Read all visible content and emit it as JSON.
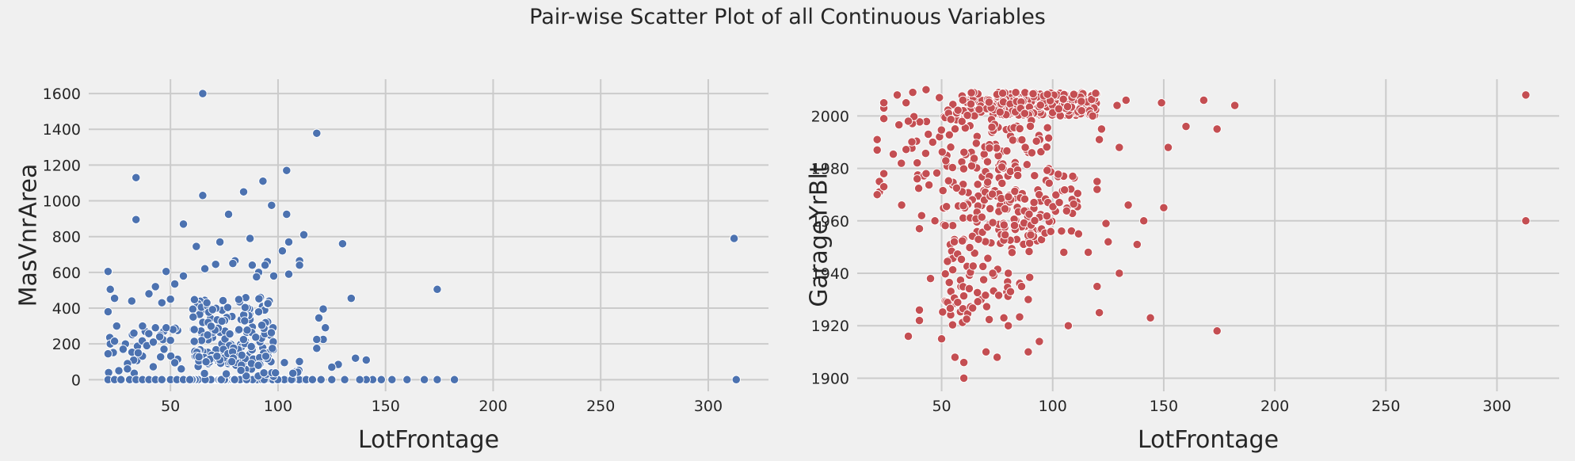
{
  "figure": {
    "title": "Pair-wise Scatter Plot of all Continuous Variables"
  },
  "chart_data": [
    {
      "type": "scatter",
      "title": "",
      "xlabel": "LotFrontage",
      "ylabel": "MasVnrArea",
      "xlim": [
        12,
        328
      ],
      "ylim": [
        -65,
        1680
      ],
      "xticks": [
        50,
        100,
        150,
        200,
        250,
        300
      ],
      "yticks": [
        0,
        200,
        400,
        600,
        800,
        1000,
        1200,
        1400,
        1600
      ],
      "grid": true,
      "color": "#4c72b0",
      "seed": 7,
      "points": [
        [
          65,
          1600
        ],
        [
          118,
          1378
        ],
        [
          34,
          1130
        ],
        [
          104,
          1170
        ],
        [
          93,
          1110
        ],
        [
          84,
          1050
        ],
        [
          65,
          1030
        ],
        [
          97,
          975
        ],
        [
          34,
          895
        ],
        [
          56,
          870
        ],
        [
          104,
          925
        ],
        [
          77,
          925
        ],
        [
          112,
          810
        ],
        [
          130,
          760
        ],
        [
          105,
          770
        ],
        [
          87,
          790
        ],
        [
          73,
          770
        ],
        [
          62,
          745
        ],
        [
          312,
          790
        ],
        [
          174,
          505
        ],
        [
          21,
          605
        ],
        [
          48,
          605
        ],
        [
          134,
          455
        ],
        [
          313,
          0
        ],
        [
          182,
          0
        ],
        [
          174,
          0
        ],
        [
          168,
          0
        ],
        [
          160,
          0
        ],
        [
          153,
          0
        ],
        [
          148,
          0
        ],
        [
          144,
          0
        ],
        [
          141,
          0
        ],
        [
          138,
          0
        ],
        [
          131,
          0
        ],
        [
          125,
          0
        ],
        [
          120,
          0
        ],
        [
          116,
          0
        ],
        [
          141,
          110
        ],
        [
          136,
          120
        ],
        [
          128,
          85
        ],
        [
          125,
          70
        ],
        [
          122,
          290
        ],
        [
          121,
          225
        ],
        [
          121,
          395
        ],
        [
          119,
          345
        ],
        [
          118,
          225
        ],
        [
          118,
          175
        ],
        [
          110,
          665
        ],
        [
          110,
          640
        ],
        [
          102,
          720
        ],
        [
          95,
          660
        ],
        [
          94,
          640
        ],
        [
          91,
          600
        ],
        [
          88,
          640
        ],
        [
          105,
          590
        ],
        [
          98,
          580
        ],
        [
          90,
          575
        ],
        [
          80,
          665
        ],
        [
          79,
          650
        ],
        [
          71,
          645
        ],
        [
          66,
          620
        ],
        [
          56,
          580
        ],
        [
          52,
          535
        ],
        [
          50,
          450
        ],
        [
          46,
          430
        ],
        [
          43,
          520
        ],
        [
          40,
          480
        ],
        [
          32,
          440
        ],
        [
          22,
          505
        ],
        [
          21,
          380
        ],
        [
          24,
          455
        ],
        [
          25,
          300
        ],
        [
          22,
          200
        ],
        [
          21,
          145
        ],
        [
          24,
          215
        ],
        [
          21,
          0
        ],
        [
          24,
          0
        ],
        [
          27,
          0
        ],
        [
          31,
          0
        ],
        [
          34,
          0
        ],
        [
          37,
          0
        ],
        [
          40,
          0
        ],
        [
          43,
          0
        ],
        [
          46,
          0
        ],
        [
          50,
          0
        ],
        [
          53,
          0
        ],
        [
          56,
          0
        ],
        [
          59,
          0
        ],
        [
          30,
          90
        ],
        [
          35,
          150
        ],
        [
          39,
          190
        ],
        [
          43,
          290
        ],
        [
          45,
          240
        ],
        [
          47,
          170
        ],
        [
          52,
          95
        ],
        [
          55,
          60
        ],
        [
          50,
          220
        ],
        [
          48,
          290
        ],
        [
          42,
          210
        ],
        [
          37,
          300
        ],
        [
          33,
          260
        ],
        [
          28,
          170
        ],
        [
          30,
          60
        ],
        [
          26,
          50
        ]
      ],
      "clusters": [
        {
          "n": 180,
          "x": [
            59,
            115
          ],
          "y": [
            0,
            0
          ]
        },
        {
          "n": 150,
          "x": [
            60,
            98
          ],
          "y": [
            80,
            460
          ]
        },
        {
          "n": 40,
          "x": [
            60,
            110
          ],
          "y": [
            15,
            160
          ]
        },
        {
          "n": 25,
          "x": [
            21,
            56
          ],
          "y": [
            30,
            300
          ]
        }
      ]
    },
    {
      "type": "scatter",
      "title": "",
      "xlabel": "LotFrontage",
      "ylabel": "GarageYrBlt",
      "xlim": [
        12,
        328
      ],
      "ylim": [
        1895,
        2014
      ],
      "xticks": [
        50,
        100,
        150,
        200,
        250,
        300
      ],
      "yticks": [
        1900,
        1920,
        1940,
        1960,
        1980,
        2000
      ],
      "grid": true,
      "color": "#c44e52",
      "seed": 11,
      "points": [
        [
          313,
          2008
        ],
        [
          313,
          1960
        ],
        [
          182,
          2004
        ],
        [
          168,
          2006
        ],
        [
          174,
          1995
        ],
        [
          160,
          1996
        ],
        [
          149,
          2005
        ],
        [
          152,
          1988
        ],
        [
          150,
          1965
        ],
        [
          134,
          1966
        ],
        [
          141,
          1960
        ],
        [
          138,
          1951
        ],
        [
          130,
          1940
        ],
        [
          144,
          1923
        ],
        [
          174,
          1918
        ],
        [
          120,
          1935
        ],
        [
          121,
          1925
        ],
        [
          107,
          1920
        ],
        [
          105,
          1948
        ],
        [
          116,
          1948
        ],
        [
          130,
          1988
        ],
        [
          129,
          2004
        ],
        [
          133,
          2006
        ],
        [
          94,
          1914
        ],
        [
          89,
          1910
        ],
        [
          75,
          1908
        ],
        [
          70,
          1910
        ],
        [
          60,
          1900
        ],
        [
          60,
          1906
        ],
        [
          56,
          1908
        ],
        [
          35,
          1916
        ],
        [
          40,
          1922
        ],
        [
          40,
          1926
        ],
        [
          45,
          1938
        ],
        [
          50,
          1915
        ],
        [
          41,
          1962
        ],
        [
          40,
          1957
        ],
        [
          39,
          1976
        ],
        [
          43,
          1978
        ],
        [
          44,
          1993
        ],
        [
          46,
          1990
        ],
        [
          32,
          1966
        ],
        [
          21,
          1987
        ],
        [
          21,
          1991
        ],
        [
          22,
          1975
        ],
        [
          22,
          1971
        ],
        [
          24,
          1973
        ],
        [
          24,
          1978
        ],
        [
          21,
          1970
        ],
        [
          24,
          1999
        ],
        [
          24,
          2003
        ],
        [
          24,
          2005
        ],
        [
          30,
          2008
        ],
        [
          34,
          2005
        ],
        [
          37,
          2009
        ],
        [
          43,
          2010
        ],
        [
          49,
          2007
        ],
        [
          81,
          1933
        ],
        [
          86,
          1935
        ],
        [
          89,
          1930
        ],
        [
          80,
          1920
        ],
        [
          78,
          1923
        ],
        [
          73,
          1940
        ],
        [
          80,
          1940
        ],
        [
          125,
          1952
        ],
        [
          124,
          1959
        ],
        [
          120,
          1972
        ],
        [
          120,
          1975
        ],
        [
          121,
          1991
        ],
        [
          122,
          1995
        ],
        [
          118,
          2000
        ],
        [
          113,
          2002
        ],
        [
          109,
          1977
        ],
        [
          103,
          1967
        ],
        [
          47,
          1960
        ],
        [
          35,
          1998
        ]
      ],
      "clusters": [
        {
          "n": 260,
          "x": [
            59,
            120
          ],
          "y": [
            2000,
            2009
          ]
        },
        {
          "n": 110,
          "x": [
            59,
            95
          ],
          "y": [
            1950,
            1972
          ]
        },
        {
          "n": 80,
          "x": [
            59,
            100
          ],
          "y": [
            1973,
            1999
          ]
        },
        {
          "n": 70,
          "x": [
            50,
            60
          ],
          "y": [
            1920,
            2008
          ]
        },
        {
          "n": 35,
          "x": [
            60,
            90
          ],
          "y": [
            1920,
            1950
          ]
        },
        {
          "n": 30,
          "x": [
            96,
            112
          ],
          "y": [
            1955,
            1980
          ]
        },
        {
          "n": 20,
          "x": [
            28,
            50
          ],
          "y": [
            1972,
            2000
          ]
        }
      ]
    }
  ]
}
